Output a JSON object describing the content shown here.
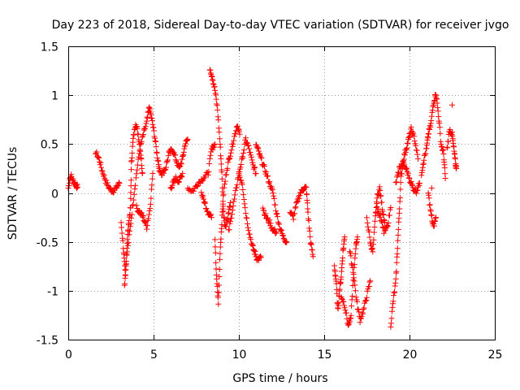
{
  "chart_data": {
    "type": "scatter",
    "title": "Day 223 of 2018, Sidereal Day-to-day VTEC variation (SDTVAR) for receiver jvgo",
    "xlabel": "GPS time / hours",
    "ylabel": "SDTVAR / TECUs",
    "xlim": [
      0,
      25
    ],
    "ylim": [
      -1.5,
      1.5
    ],
    "grid": true,
    "marker": "+",
    "color": "#ff0000",
    "x_ticks": [
      0,
      5,
      10,
      15,
      20,
      25
    ],
    "x_tick_labels": [
      "0",
      "5",
      "10",
      "15",
      "20",
      "25"
    ],
    "y_ticks": [
      -1.5,
      -1,
      -0.5,
      0,
      0.5,
      1,
      1.5
    ],
    "y_tick_labels": [
      "-1.5",
      "-1",
      "-0.5",
      "0",
      "0.5",
      "1",
      "1.5"
    ],
    "tracks": [
      [
        [
          0.0,
          0.05
        ],
        [
          0.15,
          0.18
        ],
        [
          0.3,
          0.12
        ],
        [
          0.45,
          0.08
        ],
        [
          0.55,
          0.06
        ]
      ],
      [
        [
          1.6,
          0.42
        ],
        [
          1.8,
          0.35
        ],
        [
          2.0,
          0.22
        ],
        [
          2.2,
          0.12
        ],
        [
          2.4,
          0.05
        ],
        [
          2.6,
          0.02
        ],
        [
          2.8,
          0.05
        ],
        [
          3.0,
          0.1
        ]
      ],
      [
        [
          3.1,
          -0.3
        ],
        [
          3.25,
          -0.6
        ],
        [
          3.35,
          -0.85
        ],
        [
          3.45,
          -0.5
        ],
        [
          3.55,
          -0.3
        ],
        [
          3.65,
          -0.15
        ],
        [
          3.7,
          0.3
        ],
        [
          3.8,
          0.55
        ],
        [
          3.95,
          0.72
        ],
        [
          4.1,
          0.6
        ],
        [
          4.25,
          0.4
        ],
        [
          4.35,
          0.2
        ]
      ],
      [
        [
          3.3,
          -0.95
        ],
        [
          3.4,
          -0.7
        ],
        [
          3.6,
          -0.4
        ],
        [
          3.8,
          -0.1
        ],
        [
          4.0,
          0.2
        ],
        [
          4.2,
          0.45
        ],
        [
          4.4,
          0.6
        ],
        [
          4.6,
          0.72
        ],
        [
          4.75,
          0.88
        ],
        [
          4.9,
          0.75
        ],
        [
          5.05,
          0.6
        ],
        [
          5.2,
          0.4
        ],
        [
          5.35,
          0.25
        ]
      ],
      [
        [
          4.0,
          -0.15
        ],
        [
          4.2,
          -0.2
        ],
        [
          4.4,
          -0.25
        ],
        [
          4.6,
          -0.35
        ],
        [
          4.8,
          -0.15
        ],
        [
          4.95,
          0.2
        ]
      ],
      [
        [
          5.3,
          0.25
        ],
        [
          5.5,
          0.2
        ],
        [
          5.7,
          0.25
        ],
        [
          5.9,
          0.4
        ],
        [
          6.1,
          0.45
        ],
        [
          6.3,
          0.35
        ],
        [
          6.5,
          0.25
        ],
        [
          6.7,
          0.35
        ],
        [
          6.85,
          0.5
        ],
        [
          7.0,
          0.55
        ]
      ],
      [
        [
          6.0,
          0.05
        ],
        [
          6.15,
          0.1
        ],
        [
          6.3,
          0.15
        ],
        [
          6.5,
          0.12
        ],
        [
          6.7,
          0.2
        ]
      ],
      [
        [
          7.0,
          0.05
        ],
        [
          7.3,
          0.02
        ],
        [
          7.6,
          0.1
        ],
        [
          7.9,
          0.15
        ],
        [
          8.2,
          0.2
        ],
        [
          8.4,
          0.45
        ],
        [
          8.6,
          0.5
        ]
      ],
      [
        [
          7.8,
          0.0
        ],
        [
          8.0,
          -0.1
        ],
        [
          8.2,
          -0.2
        ],
        [
          8.4,
          -0.25
        ]
      ],
      [
        [
          8.3,
          1.28
        ],
        [
          8.45,
          1.18
        ],
        [
          8.6,
          1.05
        ],
        [
          8.75,
          0.85
        ],
        [
          8.9,
          0.5
        ],
        [
          9.0,
          0.2
        ],
        [
          9.1,
          -0.2
        ],
        [
          9.2,
          -0.35
        ],
        [
          9.35,
          -0.25
        ],
        [
          9.5,
          -0.1
        ]
      ],
      [
        [
          8.6,
          -0.5
        ],
        [
          8.7,
          -0.9
        ],
        [
          8.8,
          -1.12
        ],
        [
          8.9,
          -0.6
        ],
        [
          9.0,
          -0.3
        ],
        [
          9.1,
          0.0
        ],
        [
          9.3,
          0.25
        ],
        [
          9.5,
          0.4
        ],
        [
          9.7,
          0.55
        ],
        [
          9.9,
          0.7
        ],
        [
          10.05,
          0.6
        ]
      ],
      [
        [
          9.4,
          -0.4
        ],
        [
          9.6,
          -0.2
        ],
        [
          9.8,
          0.0
        ],
        [
          10.0,
          0.2
        ],
        [
          10.2,
          0.35
        ],
        [
          10.4,
          0.55
        ],
        [
          10.6,
          0.45
        ],
        [
          10.8,
          0.3
        ],
        [
          11.0,
          0.2
        ]
      ],
      [
        [
          10.0,
          0.2
        ],
        [
          10.2,
          0.1
        ],
        [
          10.4,
          -0.2
        ],
        [
          10.6,
          -0.4
        ],
        [
          10.8,
          -0.55
        ],
        [
          10.95,
          -0.62
        ],
        [
          11.1,
          -0.68
        ],
        [
          11.3,
          -0.66
        ]
      ],
      [
        [
          11.0,
          0.5
        ],
        [
          11.2,
          0.4
        ],
        [
          11.4,
          0.3
        ],
        [
          11.6,
          0.2
        ],
        [
          11.8,
          0.1
        ],
        [
          12.0,
          0.0
        ],
        [
          12.2,
          -0.2
        ],
        [
          12.4,
          -0.35
        ],
        [
          12.6,
          -0.45
        ],
        [
          12.8,
          -0.5
        ]
      ],
      [
        [
          11.4,
          -0.15
        ],
        [
          11.6,
          -0.25
        ],
        [
          11.8,
          -0.3
        ],
        [
          12.0,
          -0.38
        ],
        [
          12.2,
          -0.4
        ]
      ],
      [
        [
          13.0,
          -0.2
        ],
        [
          13.2,
          -0.25
        ],
        [
          13.4,
          -0.1
        ],
        [
          13.6,
          0.0
        ],
        [
          13.8,
          0.05
        ],
        [
          13.95,
          0.05
        ],
        [
          14.05,
          -0.2
        ],
        [
          14.2,
          -0.5
        ],
        [
          14.35,
          -0.65
        ]
      ],
      [
        [
          15.6,
          -0.75
        ],
        [
          15.7,
          -0.9
        ],
        [
          15.8,
          -1.2
        ],
        [
          15.9,
          -1.0
        ],
        [
          16.0,
          -0.85
        ],
        [
          16.1,
          -0.6
        ],
        [
          16.2,
          -0.45
        ]
      ],
      [
        [
          16.0,
          -1.05
        ],
        [
          16.2,
          -1.15
        ],
        [
          16.4,
          -1.35
        ],
        [
          16.55,
          -1.3
        ],
        [
          16.7,
          -0.9
        ],
        [
          16.85,
          -0.55
        ],
        [
          16.95,
          -0.45
        ]
      ],
      [
        [
          16.5,
          -0.6
        ],
        [
          16.7,
          -0.8
        ],
        [
          16.9,
          -1.1
        ],
        [
          17.1,
          -1.3
        ],
        [
          17.3,
          -1.2
        ],
        [
          17.5,
          -1.05
        ],
        [
          17.7,
          -0.9
        ]
      ],
      [
        [
          17.5,
          -0.25
        ],
        [
          17.7,
          -0.5
        ],
        [
          17.85,
          -0.6
        ],
        [
          18.0,
          -0.25
        ],
        [
          18.1,
          -0.05
        ],
        [
          18.25,
          0.05
        ],
        [
          18.4,
          -0.15
        ],
        [
          18.55,
          -0.3
        ]
      ],
      [
        [
          18.1,
          -0.15
        ],
        [
          18.3,
          -0.25
        ],
        [
          18.5,
          -0.4
        ],
        [
          18.7,
          -0.35
        ],
        [
          18.9,
          -0.15
        ]
      ],
      [
        [
          18.9,
          -1.35
        ],
        [
          19.05,
          -1.1
        ],
        [
          19.2,
          -0.9
        ],
        [
          19.3,
          -0.55
        ],
        [
          19.4,
          -0.2
        ],
        [
          19.5,
          0.15
        ],
        [
          19.65,
          0.35
        ],
        [
          19.8,
          0.45
        ],
        [
          19.95,
          0.55
        ],
        [
          20.1,
          0.65
        ],
        [
          20.3,
          0.55
        ],
        [
          20.5,
          0.35
        ]
      ],
      [
        [
          19.2,
          0.1
        ],
        [
          19.4,
          0.25
        ],
        [
          19.6,
          0.3
        ],
        [
          19.8,
          0.25
        ],
        [
          20.0,
          0.15
        ],
        [
          20.2,
          0.05
        ],
        [
          20.4,
          0.02
        ],
        [
          20.6,
          0.1
        ]
      ],
      [
        [
          20.7,
          0.2
        ],
        [
          20.85,
          0.35
        ],
        [
          21.0,
          0.45
        ],
        [
          21.1,
          0.6
        ],
        [
          21.25,
          0.7
        ],
        [
          21.4,
          0.92
        ],
        [
          21.55,
          1.02
        ],
        [
          21.7,
          0.8
        ],
        [
          21.85,
          0.5
        ],
        [
          22.0,
          0.4
        ],
        [
          22.1,
          0.15
        ]
      ],
      [
        [
          21.1,
          0.0
        ],
        [
          21.25,
          -0.2
        ],
        [
          21.4,
          -0.35
        ],
        [
          21.55,
          -0.25
        ]
      ],
      [
        [
          22.2,
          0.45
        ],
        [
          22.35,
          0.65
        ],
        [
          22.5,
          0.6
        ],
        [
          22.6,
          0.45
        ],
        [
          22.7,
          0.3
        ],
        [
          22.75,
          0.25
        ]
      ]
    ],
    "stray_points": [
      [
        22.5,
        0.9
      ],
      [
        21.3,
        0.05
      ],
      [
        0.1,
        0.15
      ]
    ]
  }
}
